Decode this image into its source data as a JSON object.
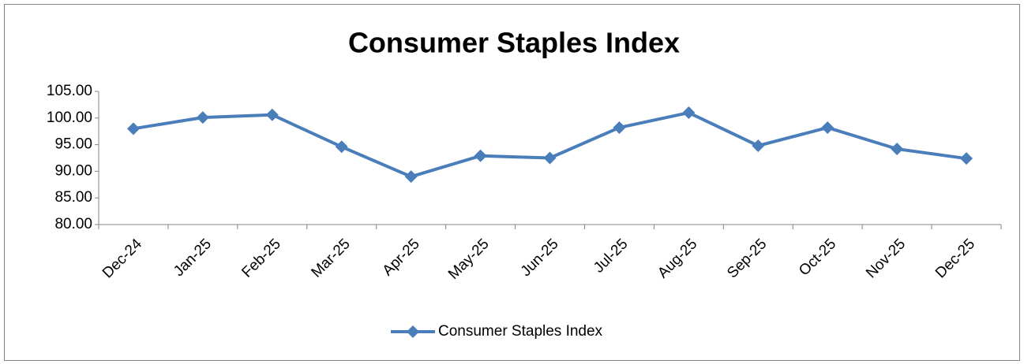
{
  "chart_data": {
    "type": "line",
    "title": "Consumer Staples Index",
    "categories": [
      "Dec-24",
      "Jan-25",
      "Feb-25",
      "Mar-25",
      "Apr-25",
      "May-25",
      "Jun-25",
      "Jul-25",
      "Aug-25",
      "Sep-25",
      "Oct-25",
      "Nov-25",
      "Dec-25"
    ],
    "series": [
      {
        "name": "Consumer Staples Index",
        "color": "#4a7ebb",
        "values": [
          98.0,
          100.1,
          100.6,
          94.6,
          89.0,
          92.9,
          92.5,
          98.2,
          101.0,
          94.8,
          98.2,
          94.2,
          92.4
        ]
      }
    ],
    "ylim": [
      80,
      105
    ],
    "yticks": [
      {
        "value": 80,
        "label": "80.00"
      },
      {
        "value": 85,
        "label": "85.00"
      },
      {
        "value": 90,
        "label": "90.00"
      },
      {
        "value": 95,
        "label": "95.00"
      },
      {
        "value": 100,
        "label": "100.00"
      },
      {
        "value": 105,
        "label": "105.00"
      }
    ],
    "grid": false,
    "legend": "bottom"
  }
}
